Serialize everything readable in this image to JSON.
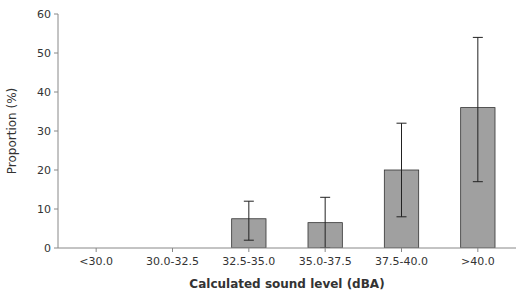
{
  "chart_data": {
    "type": "bar",
    "categories": [
      "<30.0",
      "30.0-32.5",
      "32.5-35.0",
      "35.0-37.5",
      "37.5-40.0",
      ">40.0"
    ],
    "values": [
      0,
      0,
      7.5,
      6.5,
      20.0,
      36.0
    ],
    "error_lower": [
      0,
      0,
      5.5,
      6.5,
      12.0,
      19.0
    ],
    "error_upper": [
      0,
      0,
      4.5,
      6.5,
      12.0,
      18.0
    ],
    "color": "#A0A0A0",
    "xlabel": "Calculated sound level (dBA)",
    "ylabel": "Proportion (%)",
    "ylim": [
      0,
      60
    ],
    "yticks": [
      0,
      10,
      20,
      30,
      40,
      50,
      60
    ],
    "grid": false
  }
}
